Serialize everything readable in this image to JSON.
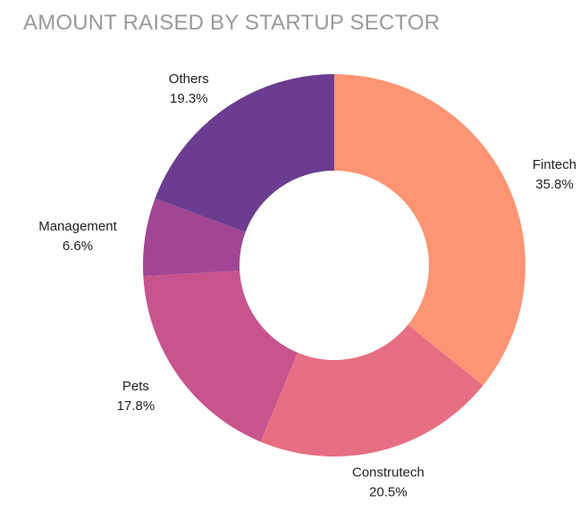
{
  "chart_data": {
    "type": "pie",
    "title": "AMOUNT RAISED BY STARTUP SECTOR",
    "slices": [
      {
        "label": "Fintech",
        "value": 35.8,
        "value_label": "35.8%",
        "color": "#FD9474"
      },
      {
        "label": "Construtech",
        "value": 20.5,
        "value_label": "20.5%",
        "color": "#E76F83"
      },
      {
        "label": "Pets",
        "value": 17.8,
        "value_label": "17.8%",
        "color": "#C8548D"
      },
      {
        "label": "Management",
        "value": 6.6,
        "value_label": "6.6%",
        "color": "#A24693"
      },
      {
        "label": "Others",
        "value": 19.3,
        "value_label": "19.3%",
        "color": "#6B3C8F"
      }
    ],
    "donut": true,
    "start_angle": "12 o'clock",
    "direction": "clockwise",
    "legend": "none"
  }
}
